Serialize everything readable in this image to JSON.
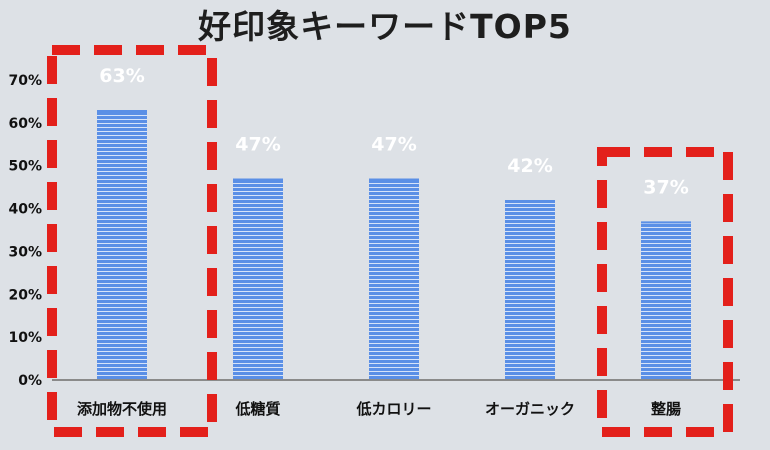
{
  "chart_data": {
    "type": "bar",
    "title": "好印象キーワードTOP5",
    "categories": [
      "添加物不使用",
      "低糖質",
      "低カロリー",
      "オーガニック",
      "整腸"
    ],
    "values": [
      63,
      47,
      47,
      42,
      37
    ],
    "data_labels": [
      "63%",
      "47%",
      "47%",
      "42%",
      "37%"
    ],
    "ylim": [
      0,
      70
    ],
    "yticks": [
      "0%",
      "10%",
      "20%",
      "30%",
      "40%",
      "50%",
      "60%",
      "70%"
    ],
    "grid": false,
    "legend": "none",
    "highlighted_categories": [
      "添加物不使用",
      "整腸"
    ]
  },
  "colors": {
    "bar": "#5a8fe6",
    "bar_stripe": "#ffffff",
    "highlight": "#e3201b",
    "background": "#dde1e6"
  }
}
